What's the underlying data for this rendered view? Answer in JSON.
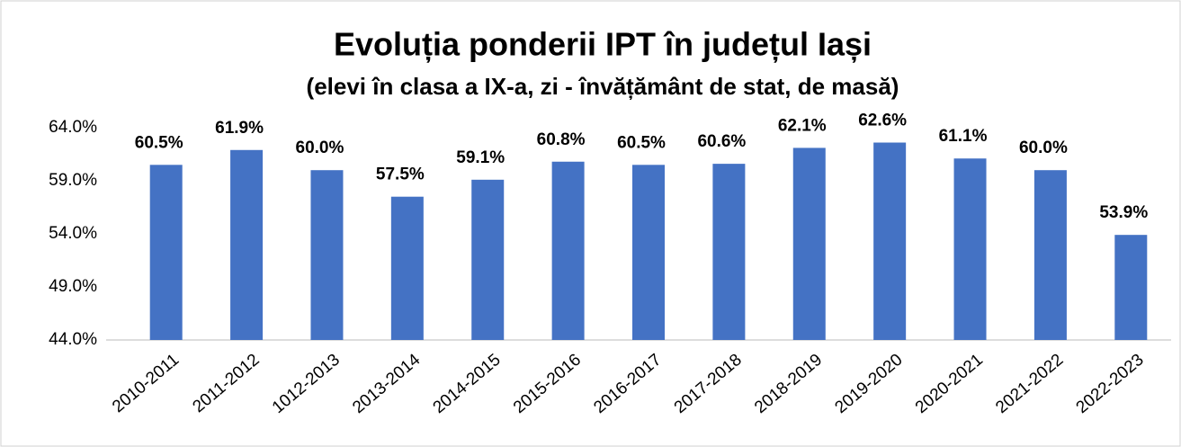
{
  "chart_data": {
    "type": "bar",
    "title": "Evoluția ponderii IPT în județul Iași",
    "subtitle": "(elevi în clasa a IX-a, zi - învățământ de stat, de masă)",
    "categories": [
      "2010-2011",
      "2011-2012",
      "1012-2013",
      "2013-2014",
      "2014-2015",
      "2015-2016",
      "2016-2017",
      "2017-2018",
      "2018-2019",
      "2019-2020",
      "2020-2021",
      "2021-2022",
      "2022-2023"
    ],
    "values": [
      60.5,
      61.9,
      60.0,
      57.5,
      59.1,
      60.8,
      60.5,
      60.6,
      62.1,
      62.6,
      61.1,
      60.0,
      53.9
    ],
    "value_labels": [
      "60.5%",
      "61.9%",
      "60.0%",
      "57.5%",
      "59.1%",
      "60.8%",
      "60.5%",
      "60.6%",
      "62.1%",
      "62.6%",
      "61.1%",
      "60.0%",
      "53.9%"
    ],
    "color": "#4472c4",
    "ylim": [
      44,
      64
    ],
    "yticks": [
      {
        "value": 44,
        "label": "44.0%"
      },
      {
        "value": 49,
        "label": "49.0%"
      },
      {
        "value": 54,
        "label": "54.0%"
      },
      {
        "value": 59,
        "label": "59.0%"
      },
      {
        "value": 64,
        "label": "64.0%"
      }
    ],
    "grid": false
  }
}
